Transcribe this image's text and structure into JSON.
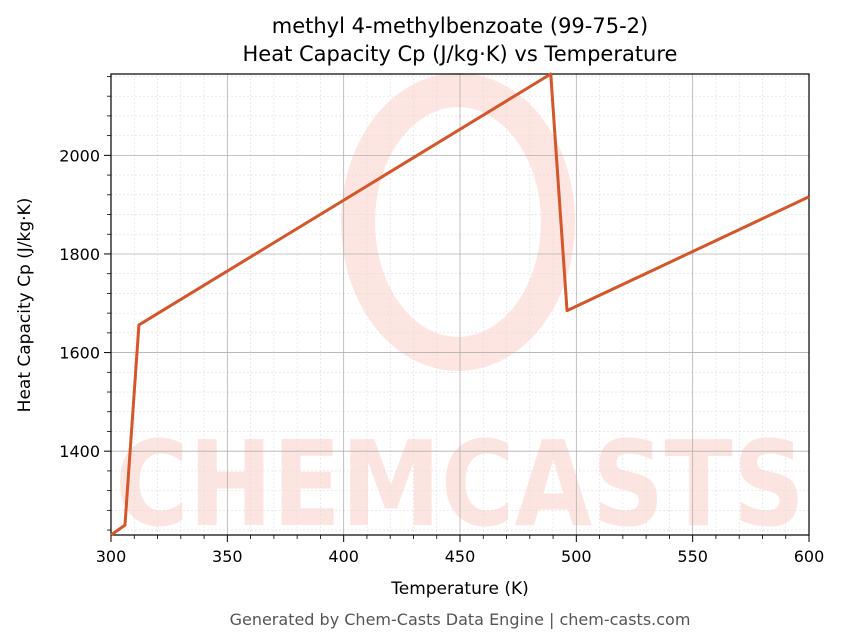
{
  "chart_data": {
    "type": "line",
    "title": "methyl 4-methylbenzoate (99-75-2)",
    "subtitle": "Heat Capacity Cp (J/kg·K) vs Temperature",
    "xlabel": "Temperature (K)",
    "ylabel": "Heat Capacity Cp (J/kg·K)",
    "xlim": [
      300,
      600
    ],
    "ylim": [
      1230,
      2165
    ],
    "xticks": [
      300,
      350,
      400,
      450,
      500,
      550,
      600
    ],
    "yticks": [
      1400,
      1600,
      1800,
      2000
    ],
    "grid": true,
    "line_color": "#d4562a",
    "series": [
      {
        "x": [
          300,
          306,
          312,
          489,
          496,
          600
        ],
        "y": [
          1230,
          1250,
          1656,
          2165,
          1685,
          1916
        ]
      }
    ]
  },
  "watermark": "CHEMCASTS",
  "footer": "Generated by Chem-Casts Data Engine | chem-casts.com"
}
